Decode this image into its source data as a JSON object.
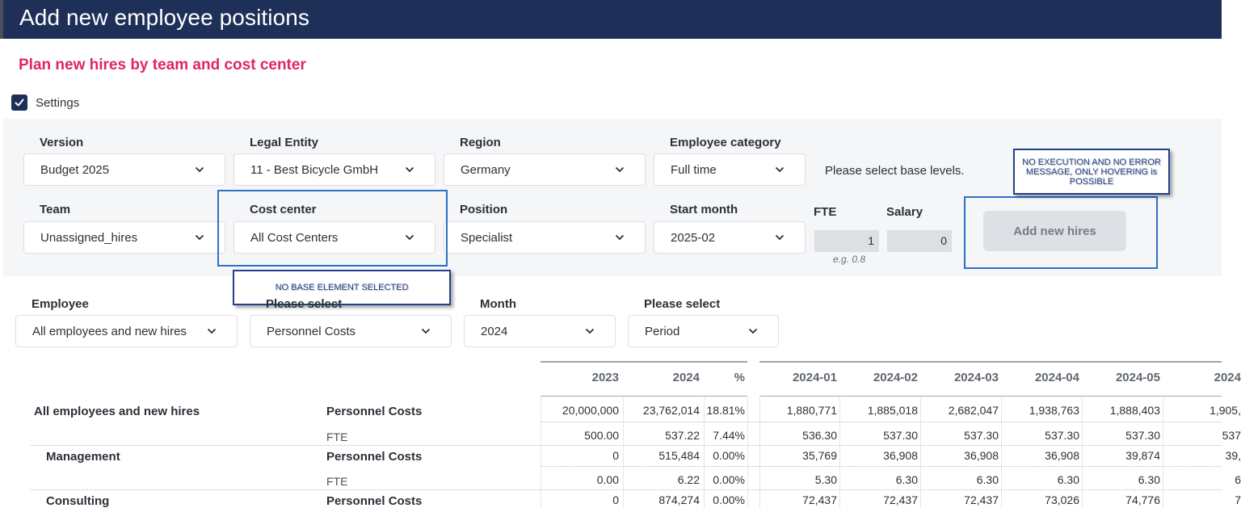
{
  "header": {
    "title": "Add new employee positions"
  },
  "subtitle": "Plan new hires by team and cost center",
  "settings": {
    "label": "Settings",
    "checked": true
  },
  "filters": {
    "version": {
      "label": "Version",
      "value": "Budget 2025"
    },
    "legal_entity": {
      "label": "Legal Entity",
      "value": "11 - Best Bicycle GmbH"
    },
    "region": {
      "label": "Region",
      "value": "Germany"
    },
    "employee_category": {
      "label": "Employee category",
      "value": "Full time"
    },
    "team": {
      "label": "Team",
      "value": "Unassigned_hires"
    },
    "cost_center": {
      "label": "Cost center",
      "value": "All Cost Centers"
    },
    "position": {
      "label": "Position",
      "value": "Specialist"
    },
    "start_month": {
      "label": "Start month",
      "value": "2025-02"
    }
  },
  "base_levels_message": "Please select base levels.",
  "fte": {
    "label": "FTE",
    "value": "1",
    "hint": "e.g. 0.8"
  },
  "salary": {
    "label": "Salary",
    "value": "0"
  },
  "add_button": "Add new hires",
  "annotations": {
    "hover_note": "NO EXECUTION AND NO ERROR MESSAGE, ONLY HOVERING is POSSIBLE",
    "base_note": "NO BASE ELEMENT SELECTED"
  },
  "report_filters": {
    "employee": {
      "label": "Employee",
      "value": "All employees and new hires"
    },
    "measure": {
      "label": "Please select",
      "value": "Personnel Costs"
    },
    "month": {
      "label": "Month",
      "value": "2024"
    },
    "period": {
      "label": "Please select",
      "value": "Period"
    }
  },
  "table": {
    "columns": [
      "2023",
      "2024",
      "%",
      "2024-01",
      "2024-02",
      "2024-03",
      "2024-04",
      "2024-05",
      "2024"
    ],
    "rows": [
      {
        "group": "All employees and new hires",
        "measure": "Personnel Costs",
        "values": [
          "20,000,000",
          "23,762,014",
          "18.81%",
          "1,880,771",
          "1,885,018",
          "2,682,047",
          "1,938,763",
          "1,888,403",
          "1,905,"
        ]
      },
      {
        "group": "",
        "measure": "FTE",
        "values": [
          "500.00",
          "537.22",
          "7.44%",
          "536.30",
          "537.30",
          "537.30",
          "537.30",
          "537.30",
          "537"
        ]
      },
      {
        "group": "Management",
        "measure": "Personnel Costs",
        "values": [
          "0",
          "515,484",
          "0.00%",
          "35,769",
          "36,908",
          "36,908",
          "36,908",
          "39,874",
          "39,"
        ]
      },
      {
        "group": "",
        "measure": "FTE",
        "values": [
          "0.00",
          "6.22",
          "0.00%",
          "5.30",
          "6.30",
          "6.30",
          "6.30",
          "6.30",
          "6"
        ]
      },
      {
        "group": "Consulting",
        "measure": "Personnel Costs",
        "values": [
          "0",
          "874,274",
          "0.00%",
          "72,437",
          "72,437",
          "72,437",
          "73,026",
          "74,776",
          "7"
        ]
      }
    ]
  }
}
